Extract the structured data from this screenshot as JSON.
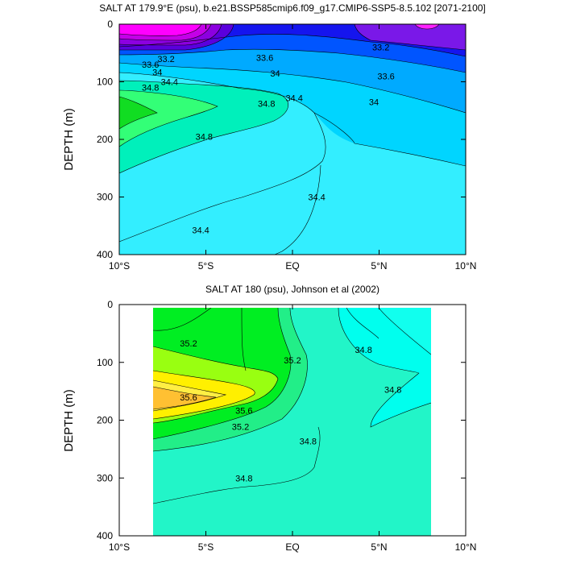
{
  "chart_data": [
    {
      "type": "heatmap",
      "subtype": "filled-contour",
      "title": "SALT AT 179.9°E (psu), b.e21.BSSP585cmip6.f09_g17.CMIP6-SSP5-8.5.102 [2071-2100]",
      "xlabel": "",
      "ylabel": "DEPTH (m)",
      "xlim": [
        -10,
        10
      ],
      "ylim": [
        0,
        400
      ],
      "y_inverted": true,
      "x_ticks": [
        -10,
        -5,
        0,
        5,
        10
      ],
      "x_tick_labels": [
        "10°S",
        "5°S",
        "EQ",
        "5°N",
        "10°N"
      ],
      "y_ticks": [
        0,
        100,
        200,
        300,
        400
      ],
      "y_tick_labels": [
        "0",
        "100",
        "200",
        "300",
        "400"
      ],
      "data_extent": {
        "x": [
          -10,
          10
        ],
        "y": [
          0,
          400
        ]
      },
      "contour_labels": [
        {
          "text": "33.2",
          "x": -7.3,
          "y": 60
        },
        {
          "text": "33.6",
          "x": -8.2,
          "y": 70
        },
        {
          "text": "33.6",
          "x": -1.6,
          "y": 58
        },
        {
          "text": "33.2",
          "x": 5.1,
          "y": 40
        },
        {
          "text": "34",
          "x": -7.8,
          "y": 83
        },
        {
          "text": "34",
          "x": -1.0,
          "y": 85
        },
        {
          "text": "33.6",
          "x": 5.4,
          "y": 90
        },
        {
          "text": "34.4",
          "x": -7.1,
          "y": 100
        },
        {
          "text": "34.8",
          "x": -8.2,
          "y": 110
        },
        {
          "text": "34.4",
          "x": 0.1,
          "y": 128
        },
        {
          "text": "34",
          "x": 4.7,
          "y": 135
        },
        {
          "text": "34.8",
          "x": -1.5,
          "y": 138
        },
        {
          "text": "34.8",
          "x": -5.1,
          "y": 195
        },
        {
          "text": "34.4",
          "x": 1.4,
          "y": 300
        },
        {
          "text": "34.4",
          "x": -5.3,
          "y": 357
        }
      ]
    },
    {
      "type": "heatmap",
      "subtype": "filled-contour",
      "title": "SALT AT 180 (psu), Johnson et al (2002)",
      "xlabel": "",
      "ylabel": "DEPTH (m)",
      "xlim": [
        -10,
        10
      ],
      "ylim": [
        0,
        400
      ],
      "y_inverted": true,
      "x_ticks": [
        -10,
        -5,
        0,
        5,
        10
      ],
      "x_tick_labels": [
        "10°S",
        "5°S",
        "EQ",
        "5°N",
        "10°N"
      ],
      "y_ticks": [
        0,
        100,
        200,
        300,
        400
      ],
      "y_tick_labels": [
        "0",
        "100",
        "200",
        "300",
        "400"
      ],
      "data_extent": {
        "x": [
          -8,
          8
        ],
        "y": [
          5,
          400
        ]
      },
      "contour_labels": [
        {
          "text": "35.2",
          "x": -6.0,
          "y": 67
        },
        {
          "text": "35.2",
          "x": 0.0,
          "y": 96
        },
        {
          "text": "34.8",
          "x": 4.1,
          "y": 78
        },
        {
          "text": "35.6",
          "x": -6.0,
          "y": 160
        },
        {
          "text": "34.8",
          "x": 5.8,
          "y": 147
        },
        {
          "text": "35.6",
          "x": -2.8,
          "y": 183
        },
        {
          "text": "35.2",
          "x": -3.0,
          "y": 211
        },
        {
          "text": "34.8",
          "x": 0.9,
          "y": 236
        },
        {
          "text": "34.8",
          "x": -2.8,
          "y": 300
        }
      ]
    }
  ]
}
